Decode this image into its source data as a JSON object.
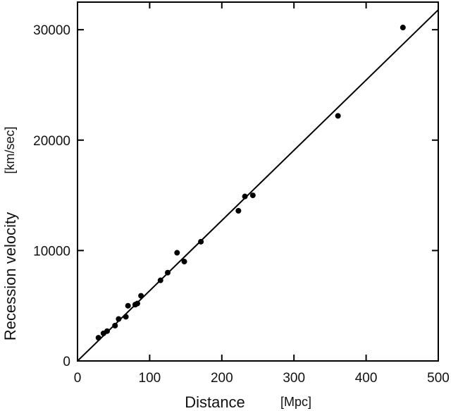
{
  "chart_data": {
    "type": "scatter",
    "title": "",
    "xlabel": "Distance",
    "xunit": "[Mpc]",
    "ylabel": "Recession velocity",
    "yunit": "[km/sec]",
    "xlim": [
      0,
      500
    ],
    "ylim": [
      0,
      32500
    ],
    "xticks": [
      0,
      100,
      200,
      300,
      400,
      500
    ],
    "xtick_labels": [
      "0",
      "100",
      "200",
      "300",
      "400",
      "500"
    ],
    "yticks": [
      0,
      10000,
      20000,
      30000
    ],
    "ytick_labels": [
      "0",
      "10000",
      "20000",
      "30000"
    ],
    "grid": false,
    "legend": "none",
    "colors": {
      "points": "#000000",
      "line": "#000000",
      "frame": "#000000",
      "background": "#ffffff"
    },
    "series": [
      {
        "points": [
          {
            "x": 29,
            "y": 2100
          },
          {
            "x": 36,
            "y": 2500
          },
          {
            "x": 41,
            "y": 2700
          },
          {
            "x": 52,
            "y": 3200
          },
          {
            "x": 57,
            "y": 3800
          },
          {
            "x": 67,
            "y": 4000
          },
          {
            "x": 70,
            "y": 5000
          },
          {
            "x": 80,
            "y": 5100
          },
          {
            "x": 83,
            "y": 5200
          },
          {
            "x": 88,
            "y": 5900
          },
          {
            "x": 115,
            "y": 7300
          },
          {
            "x": 125,
            "y": 8000
          },
          {
            "x": 138,
            "y": 9800
          },
          {
            "x": 148,
            "y": 9000
          },
          {
            "x": 171,
            "y": 10800
          },
          {
            "x": 223,
            "y": 13600
          },
          {
            "x": 232,
            "y": 14900
          },
          {
            "x": 243,
            "y": 15000
          },
          {
            "x": 361,
            "y": 22200
          },
          {
            "x": 451,
            "y": 30200
          }
        ]
      }
    ],
    "fit_line": {
      "x": [
        0,
        500
      ],
      "y": [
        0,
        31800
      ]
    }
  }
}
